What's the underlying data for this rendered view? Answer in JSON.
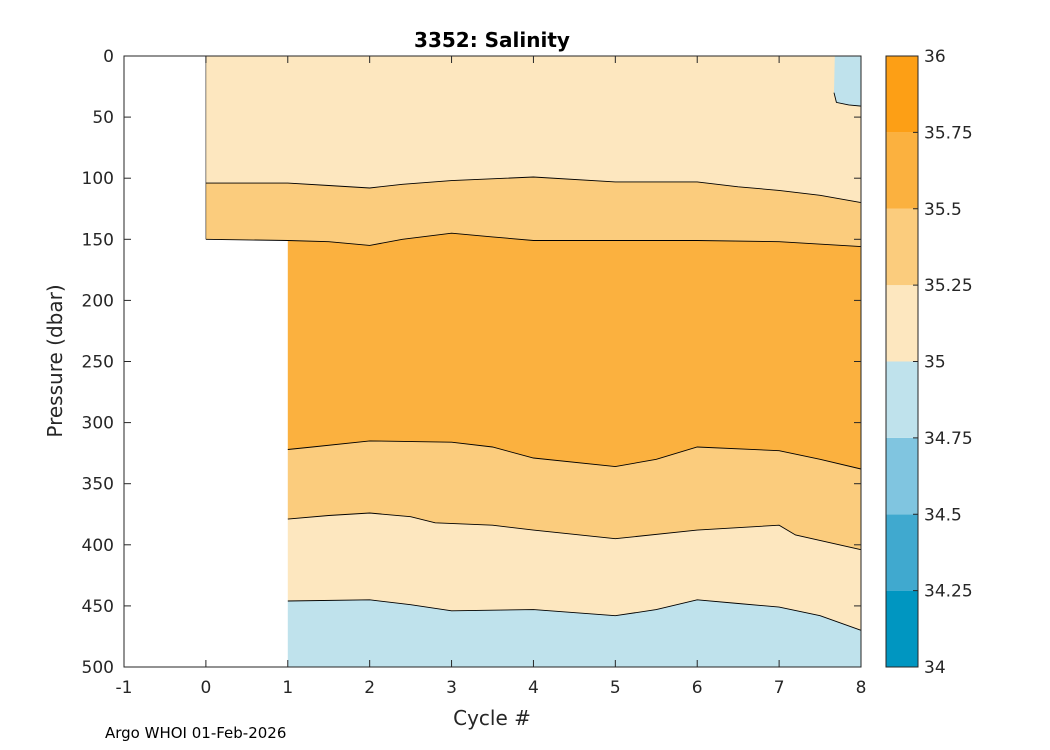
{
  "chart_data": {
    "type": "contourf",
    "title": "3352:  Salinity",
    "xlabel": "Cycle #",
    "ylabel": "Pressure (dbar)",
    "xlim": [
      -1,
      8
    ],
    "ylim": [
      0,
      500
    ],
    "y_reversed": true,
    "x_ticks": [
      "-1",
      "0",
      "1",
      "2",
      "3",
      "4",
      "5",
      "6",
      "7",
      "8"
    ],
    "y_ticks": [
      "0",
      "50",
      "100",
      "150",
      "200",
      "250",
      "300",
      "350",
      "400",
      "450",
      "500"
    ],
    "colorbar": {
      "levels": [
        34,
        34.25,
        34.5,
        34.75,
        35,
        35.25,
        35.5,
        35.75,
        36
      ],
      "tick_labels": [
        "34",
        "34.25",
        "34.5",
        "34.75",
        "35",
        "35.25",
        "35.5",
        "35.75",
        "36"
      ],
      "colors": [
        "#0096c1",
        "#40a9cf",
        "#80c5e0",
        "#bfe2ec",
        "#fde7bf",
        "#fbcc7d",
        "#fbb13f",
        "#fd9f15"
      ]
    },
    "regions": [
      {
        "name": "35.0-35.25 surface",
        "color": "#fde7bf",
        "x": [
          0,
          8
        ],
        "top": [
          [
            0,
            0
          ],
          [
            8,
            0
          ]
        ],
        "bottom": [
          [
            0,
            104
          ],
          [
            1,
            104
          ],
          [
            1.5,
            106
          ],
          [
            2,
            108
          ],
          [
            2.4,
            105
          ],
          [
            3,
            102
          ],
          [
            4,
            99
          ],
          [
            5,
            103
          ],
          [
            6,
            103
          ],
          [
            6.5,
            107
          ],
          [
            7,
            110
          ],
          [
            7.5,
            114
          ],
          [
            8,
            120
          ]
        ]
      },
      {
        "name": "34.75-35.0 surface patch",
        "color": "#bfe2ec",
        "points": [
          [
            7.68,
            0
          ],
          [
            8,
            0
          ],
          [
            8,
            41
          ],
          [
            7.85,
            40
          ],
          [
            7.7,
            38
          ],
          [
            7.67,
            30
          ]
        ]
      },
      {
        "name": "35.25-35.5 upper",
        "color": "#fbcc7d",
        "top_ref": "surface bottom",
        "bottom": [
          [
            0,
            150
          ],
          [
            1,
            151
          ],
          [
            1.5,
            152
          ],
          [
            2,
            155
          ],
          [
            2.4,
            150
          ],
          [
            3,
            145
          ],
          [
            3.5,
            148
          ],
          [
            4,
            151
          ],
          [
            5,
            151
          ],
          [
            6,
            151
          ],
          [
            7,
            152
          ],
          [
            8,
            156
          ]
        ]
      },
      {
        "name": "35.5-35.75 core",
        "color": "#fbb13f",
        "bottom": [
          [
            1,
            322
          ],
          [
            1.3,
            320
          ],
          [
            2,
            315
          ],
          [
            3,
            316
          ],
          [
            3.5,
            320
          ],
          [
            4,
            329
          ],
          [
            5,
            336
          ],
          [
            5.5,
            330
          ],
          [
            6,
            320
          ],
          [
            7,
            323
          ],
          [
            7.5,
            330
          ],
          [
            8,
            338
          ]
        ]
      },
      {
        "name": "35.25-35.5 lower",
        "color": "#fbcc7d",
        "bottom": [
          [
            1,
            379
          ],
          [
            1.5,
            376
          ],
          [
            2,
            374
          ],
          [
            2.5,
            377
          ],
          [
            2.8,
            382
          ],
          [
            3.5,
            384
          ],
          [
            4,
            388
          ],
          [
            5,
            395
          ],
          [
            6,
            388
          ],
          [
            7,
            384
          ],
          [
            7.2,
            392
          ],
          [
            8,
            404
          ]
        ]
      },
      {
        "name": "35.0-35.25 lower",
        "color": "#fde7bf",
        "bottom": [
          [
            1,
            446
          ],
          [
            2,
            445
          ],
          [
            2.5,
            449
          ],
          [
            3,
            454
          ],
          [
            4,
            453
          ],
          [
            5,
            458
          ],
          [
            5.5,
            453
          ],
          [
            6,
            445
          ],
          [
            6.5,
            448
          ],
          [
            7,
            451
          ],
          [
            7.5,
            458
          ],
          [
            8,
            470
          ]
        ]
      },
      {
        "name": "34.75-35.0 bottom",
        "color": "#bfe2ec",
        "bottom_to": 500
      }
    ]
  },
  "footer": "Argo WHOI 01-Feb-2026"
}
